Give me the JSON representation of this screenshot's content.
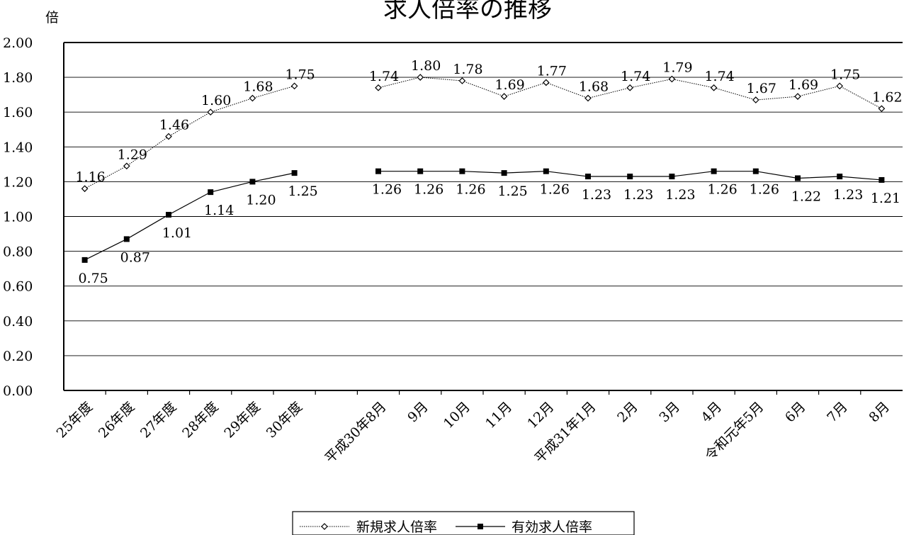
{
  "chart_data": {
    "type": "line",
    "title": "求人倍率の推移",
    "ylabel": "倍",
    "ylim": [
      0,
      2
    ],
    "ytick_step": 0.2,
    "grid": true,
    "legend_position": "bottom-center",
    "categories": [
      "25年度",
      "26年度",
      "27年度",
      "28年度",
      "29年度",
      "30年度",
      "",
      "平成30年8月",
      "9月",
      "10月",
      "11月",
      "12月",
      "平成31年1月",
      "2月",
      "3月",
      "4月",
      "令和元年5月",
      "6月",
      "7月",
      "8月"
    ],
    "series": [
      {
        "name": "新規求人倍率",
        "marker": "diamond-open",
        "line_style": "dotted",
        "values": [
          1.16,
          1.29,
          1.46,
          1.6,
          1.68,
          1.75,
          null,
          1.74,
          1.8,
          1.78,
          1.69,
          1.77,
          1.68,
          1.74,
          1.79,
          1.74,
          1.67,
          1.69,
          1.75,
          1.62
        ],
        "labels": [
          "1.16",
          "1.29",
          "1.46",
          "1.60",
          "1.68",
          "1.75",
          "",
          "1.74",
          "1.80",
          "1.78",
          "1.69",
          "1.77",
          "1.68",
          "1.74",
          "1.79",
          "1.74",
          "1.67",
          "1.69",
          "1.75",
          "1.62"
        ]
      },
      {
        "name": "有効求人倍率",
        "marker": "square-filled",
        "line_style": "solid",
        "values": [
          0.75,
          0.87,
          1.01,
          1.14,
          1.2,
          1.25,
          null,
          1.26,
          1.26,
          1.26,
          1.25,
          1.26,
          1.23,
          1.23,
          1.23,
          1.26,
          1.26,
          1.22,
          1.23,
          1.21
        ],
        "labels": [
          "0.75",
          "0.87",
          "1.01",
          "1.14",
          "1.20",
          "1.25",
          "",
          "1.26",
          "1.26",
          "1.26",
          "1.25",
          "1.26",
          "1.23",
          "1.23",
          "1.23",
          "1.26",
          "1.26",
          "1.22",
          "1.23",
          "1.21"
        ]
      }
    ]
  }
}
